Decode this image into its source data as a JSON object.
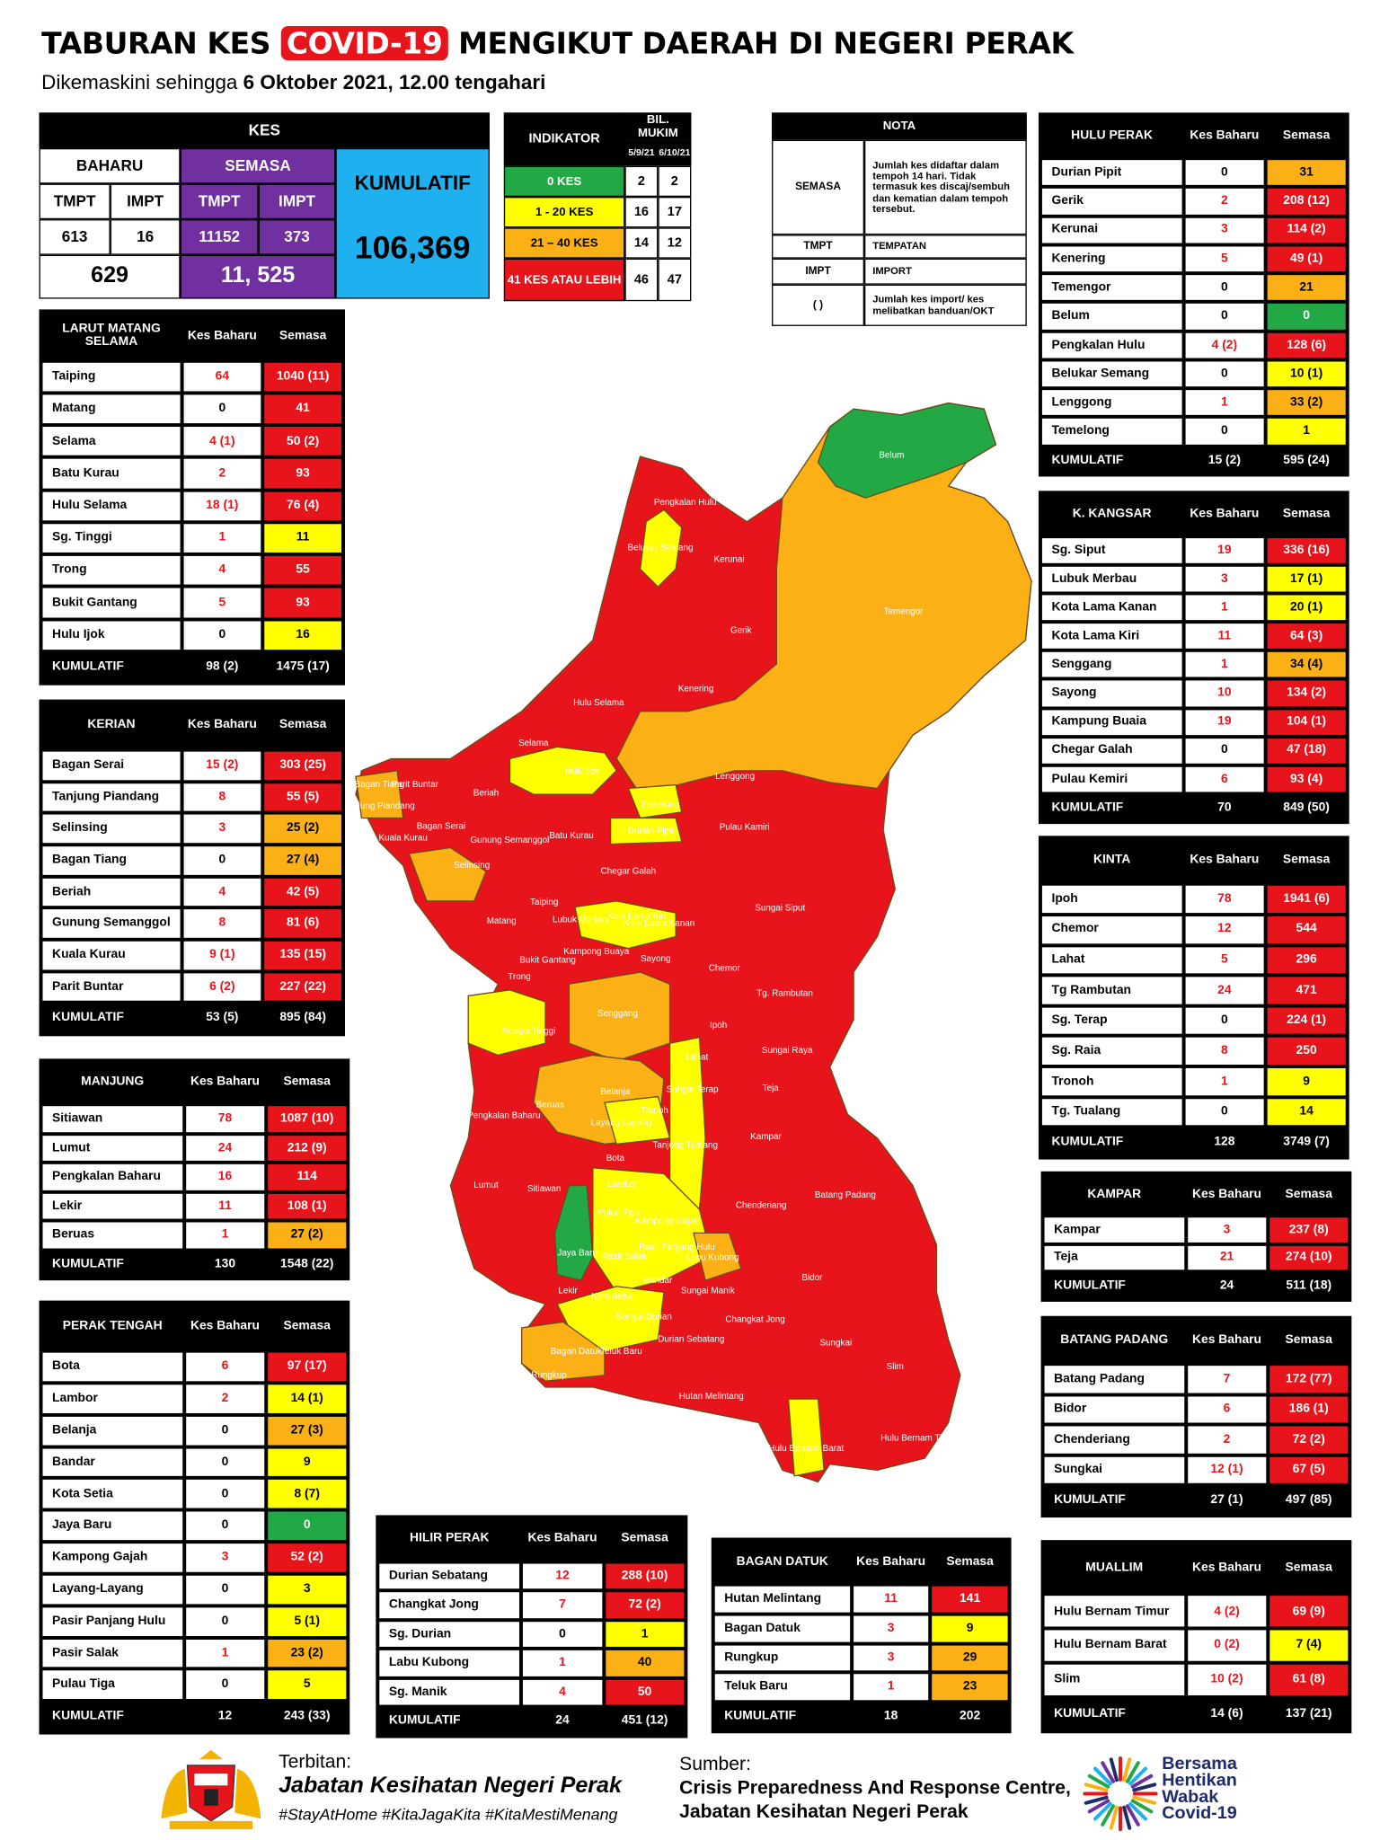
{
  "header": {
    "title_pre": "TABURAN KES",
    "title_highlight": "COVID-19",
    "title_post": "MENGIKUT DAERAH DI NEGERI PERAK",
    "subtitle_pre": "Dikemaskini sehingga",
    "subtitle_date": "6 Oktober 2021, 12.00 tengahari"
  },
  "kes": {
    "title": "KES",
    "baharu": "BAHARU",
    "semasa": "SEMASA",
    "kumulatif": "KUMULATIF",
    "cols": [
      "TMPT",
      "IMPT",
      "TMPT",
      "IMPT"
    ],
    "values": [
      613,
      16,
      11152,
      373
    ],
    "baharu_total": 629,
    "semasa_total": "11, 525",
    "kumulatif_total": "106,369"
  },
  "indikator": {
    "title": "INDIKATOR",
    "bil": "BIL. MUKIM",
    "dates": [
      "5/9/21",
      "6/10/21"
    ],
    "rows": [
      {
        "label": "0 KES",
        "color": "#22a845",
        "values": [
          2,
          2
        ]
      },
      {
        "label": "1 - 20 KES",
        "color": "#ffff00",
        "values": [
          16,
          17
        ]
      },
      {
        "label": "21 – 40 KES",
        "color": "#fbb116",
        "values": [
          14,
          12
        ]
      },
      {
        "label": "41 KES ATAU LEBIH",
        "color": "#e8141b",
        "values": [
          46,
          47
        ]
      }
    ]
  },
  "nota": {
    "title": "NOTA",
    "rows": [
      [
        "SEMASA",
        "Jumlah kes didaftar dalam tempoh 14 hari. Tidak termasuk kes discaj/sembuh dan kematian dalam tempoh tersebut."
      ],
      [
        "TMPT",
        "TEMPATAN"
      ],
      [
        "IMPT",
        "IMPORT"
      ],
      [
        "( )",
        "Jumlah kes import/ kes melibatkan banduan/OKT"
      ]
    ]
  },
  "districts": [
    {
      "title": "LARUT MATANG SELAMA",
      "col_baharu": "Kes Baharu",
      "col_semasa": "Semasa",
      "rows": [
        {
          "name": "Taiping",
          "baharu": 64,
          "semasa": "1040 (11)",
          "color": "#e8141b"
        },
        {
          "name": "Matang",
          "baharu": 0,
          "semasa": 41,
          "color": "#e8141b"
        },
        {
          "name": "Selama",
          "baharu": "4 (1)",
          "semasa": "50 (2)",
          "color": "#e8141b"
        },
        {
          "name": "Batu Kurau",
          "baharu": 2,
          "semasa": 93,
          "color": "#e8141b"
        },
        {
          "name": "Hulu Selama",
          "baharu": "18 (1)",
          "semasa": "76 (4)",
          "color": "#e8141b"
        },
        {
          "name": "Sg. Tinggi",
          "baharu": 1,
          "semasa": 11,
          "color": "#ffff00"
        },
        {
          "name": "Trong",
          "baharu": 4,
          "semasa": 55,
          "color": "#e8141b"
        },
        {
          "name": "Bukit Gantang",
          "baharu": 5,
          "semasa": 93,
          "color": "#e8141b"
        },
        {
          "name": "Hulu Ijok",
          "baharu": 0,
          "semasa": 16,
          "color": "#ffff00"
        }
      ],
      "kumulatif_label": "KUMULATIF",
      "kumulatif": [
        "98 (2)",
        "1475 (17)"
      ]
    },
    {
      "title": "KERIAN",
      "col_baharu": "Kes Baharu",
      "col_semasa": "Semasa",
      "rows": [
        {
          "name": "Bagan Serai",
          "baharu": "15 (2)",
          "semasa": "303 (25)",
          "color": "#e8141b"
        },
        {
          "name": "Tanjung Piandang",
          "baharu": 8,
          "semasa": "55 (5)",
          "color": "#e8141b"
        },
        {
          "name": "Selinsing",
          "baharu": 3,
          "semasa": "25 (2)",
          "color": "#fbb116"
        },
        {
          "name": "Bagan Tiang",
          "baharu": 0,
          "semasa": "27 (4)",
          "color": "#fbb116"
        },
        {
          "name": "Beriah",
          "baharu": 4,
          "semasa": "42 (5)",
          "color": "#e8141b"
        },
        {
          "name": "Gunung Semanggol",
          "baharu": 8,
          "semasa": "81 (6)",
          "color": "#e8141b"
        },
        {
          "name": "Kuala Kurau",
          "baharu": "9 (1)",
          "semasa": "135 (15)",
          "color": "#e8141b"
        },
        {
          "name": "Parit Buntar",
          "baharu": "6 (2)",
          "semasa": "227 (22)",
          "color": "#e8141b"
        }
      ],
      "kumulatif_label": "KUMULATIF",
      "kumulatif": [
        "53 (5)",
        "895 (84)"
      ]
    },
    {
      "title": "MANJUNG",
      "col_baharu": "Kes Baharu",
      "col_semasa": "Semasa",
      "rows": [
        {
          "name": "Sitiawan",
          "baharu": 78,
          "semasa": "1087 (10)",
          "color": "#e8141b"
        },
        {
          "name": "Lumut",
          "baharu": 24,
          "semasa": "212 (9)",
          "color": "#e8141b"
        },
        {
          "name": "Pengkalan Baharu",
          "baharu": 16,
          "semasa": 114,
          "color": "#e8141b"
        },
        {
          "name": "Lekir",
          "baharu": 11,
          "semasa": "108 (1)",
          "color": "#e8141b"
        },
        {
          "name": "Beruas",
          "baharu": 1,
          "semasa": "27 (2)",
          "color": "#fbb116"
        }
      ],
      "kumulatif_label": "KUMULATIF",
      "kumulatif": [
        130,
        "1548 (22)"
      ]
    },
    {
      "title": "PERAK TENGAH",
      "col_baharu": "Kes Baharu",
      "col_semasa": "Semasa",
      "rows": [
        {
          "name": "Bota",
          "baharu": 6,
          "semasa": "97 (17)",
          "color": "#e8141b"
        },
        {
          "name": "Lambor",
          "baharu": 2,
          "semasa": "14 (1)",
          "color": "#ffff00"
        },
        {
          "name": "Belanja",
          "baharu": 0,
          "semasa": "27 (3)",
          "color": "#fbb116"
        },
        {
          "name": "Bandar",
          "baharu": 0,
          "semasa": 9,
          "color": "#ffff00"
        },
        {
          "name": "Kota Setia",
          "baharu": 0,
          "semasa": "8 (7)",
          "color": "#ffff00"
        },
        {
          "name": "Jaya Baru",
          "baharu": 0,
          "semasa": 0,
          "color": "#22a845"
        },
        {
          "name": "Kampong Gajah",
          "baharu": 3,
          "semasa": "52 (2)",
          "color": "#e8141b"
        },
        {
          "name": "Layang-Layang",
          "baharu": 0,
          "semasa": 3,
          "color": "#ffff00"
        },
        {
          "name": "Pasir Panjang Hulu",
          "baharu": 0,
          "semasa": "5 (1)",
          "color": "#ffff00"
        },
        {
          "name": "Pasir Salak",
          "baharu": 1,
          "semasa": "23 (2)",
          "color": "#fbb116"
        },
        {
          "name": "Pulau Tiga",
          "baharu": 0,
          "semasa": 5,
          "color": "#ffff00"
        }
      ],
      "kumulatif_label": "KUMULATIF",
      "kumulatif": [
        12,
        "243 (33)"
      ]
    },
    {
      "title": "HULU PERAK",
      "col_baharu": "Kes Baharu",
      "col_semasa": "Semasa",
      "rows": [
        {
          "name": "Durian Pipit",
          "baharu": 0,
          "semasa": 31,
          "color": "#fbb116"
        },
        {
          "name": "Gerik",
          "baharu": 2,
          "semasa": "208 (12)",
          "color": "#e8141b"
        },
        {
          "name": "Kerunai",
          "baharu": 3,
          "semasa": "114 (2)",
          "color": "#e8141b"
        },
        {
          "name": "Kenering",
          "baharu": 5,
          "semasa": "49 (1)",
          "color": "#e8141b"
        },
        {
          "name": "Temengor",
          "baharu": 0,
          "semasa": 21,
          "color": "#fbb116"
        },
        {
          "name": "Belum",
          "baharu": 0,
          "semasa": 0,
          "color": "#22a845"
        },
        {
          "name": "Pengkalan Hulu",
          "baharu": "4 (2)",
          "semasa": "128 (6)",
          "color": "#e8141b"
        },
        {
          "name": "Belukar Semang",
          "baharu": 0,
          "semasa": "10 (1)",
          "color": "#ffff00"
        },
        {
          "name": "Lenggong",
          "baharu": 1,
          "semasa": "33 (2)",
          "color": "#fbb116"
        },
        {
          "name": "Temelong",
          "baharu": 0,
          "semasa": 1,
          "color": "#ffff00"
        }
      ],
      "kumulatif_label": "KUMULATIF",
      "kumulatif": [
        "15 (2)",
        "595 (24)"
      ]
    },
    {
      "title": "K. KANGSAR",
      "col_baharu": "Kes Baharu",
      "col_semasa": "Semasa",
      "rows": [
        {
          "name": "Sg. Siput",
          "baharu": 19,
          "semasa": "336 (16)",
          "color": "#e8141b"
        },
        {
          "name": "Lubuk Merbau",
          "baharu": 3,
          "semasa": "17 (1)",
          "color": "#ffff00"
        },
        {
          "name": "Kota Lama Kanan",
          "baharu": 1,
          "semasa": "20 (1)",
          "color": "#ffff00"
        },
        {
          "name": "Kota Lama Kiri",
          "baharu": 11,
          "semasa": "64 (3)",
          "color": "#e8141b"
        },
        {
          "name": "Senggang",
          "baharu": 1,
          "semasa": "34 (4)",
          "color": "#fbb116"
        },
        {
          "name": "Sayong",
          "baharu": 10,
          "semasa": "134 (2)",
          "color": "#e8141b"
        },
        {
          "name": "Kampung Buaia",
          "baharu": 19,
          "semasa": "104 (1)",
          "color": "#e8141b"
        },
        {
          "name": "Chegar Galah",
          "baharu": 0,
          "semasa": "47 (18)",
          "color": "#e8141b"
        },
        {
          "name": "Pulau Kemiri",
          "baharu": 6,
          "semasa": "93 (4)",
          "color": "#e8141b"
        }
      ],
      "kumulatif_label": "KUMULATIF",
      "kumulatif": [
        70,
        "849 (50)"
      ]
    },
    {
      "title": "KINTA",
      "col_baharu": "Kes Baharu",
      "col_semasa": "Semasa",
      "rows": [
        {
          "name": "Ipoh",
          "baharu": 78,
          "semasa": "1941 (6)",
          "color": "#e8141b"
        },
        {
          "name": "Chemor",
          "baharu": 12,
          "semasa": 544,
          "color": "#e8141b"
        },
        {
          "name": "Lahat",
          "baharu": 5,
          "semasa": 296,
          "color": "#e8141b"
        },
        {
          "name": "Tg Rambutan",
          "baharu": 24,
          "semasa": 471,
          "color": "#e8141b"
        },
        {
          "name": "Sg. Terap",
          "baharu": 0,
          "semasa": "224 (1)",
          "color": "#e8141b"
        },
        {
          "name": "Sg. Raia",
          "baharu": 8,
          "semasa": 250,
          "color": "#e8141b"
        },
        {
          "name": "Tronoh",
          "baharu": 1,
          "semasa": 9,
          "color": "#ffff00"
        },
        {
          "name": "Tg. Tualang",
          "baharu": 0,
          "semasa": 14,
          "color": "#ffff00"
        }
      ],
      "kumulatif_label": "KUMULATIF",
      "kumulatif": [
        128,
        "3749 (7)"
      ]
    },
    {
      "title": "KAMPAR",
      "col_baharu": "Kes Baharu",
      "col_semasa": "Semasa",
      "rows": [
        {
          "name": "Kampar",
          "baharu": 3,
          "semasa": "237 (8)",
          "color": "#e8141b"
        },
        {
          "name": "Teja",
          "baharu": 21,
          "semasa": "274 (10)",
          "color": "#e8141b"
        }
      ],
      "kumulatif_label": "KUMULATIF",
      "kumulatif": [
        24,
        "511 (18)"
      ]
    },
    {
      "title": "BATANG PADANG",
      "col_baharu": "Kes Baharu",
      "col_semasa": "Semasa",
      "rows": [
        {
          "name": "Batang Padang",
          "baharu": 7,
          "semasa": "172 (77)",
          "color": "#e8141b"
        },
        {
          "name": "Bidor",
          "baharu": 6,
          "semasa": "186 (1)",
          "color": "#e8141b"
        },
        {
          "name": "Chenderiang",
          "baharu": 2,
          "semasa": "72 (2)",
          "color": "#e8141b"
        },
        {
          "name": "Sungkai",
          "baharu": "12 (1)",
          "semasa": "67 (5)",
          "color": "#e8141b"
        }
      ],
      "kumulatif_label": "KUMULATIF",
      "kumulatif": [
        "27 (1)",
        "497 (85)"
      ]
    },
    {
      "title": "MUALLIM",
      "col_baharu": "Kes Baharu",
      "col_semasa": "Semasa",
      "rows": [
        {
          "name": "Hulu Bernam Timur",
          "baharu": "4 (2)",
          "semasa": "69 (9)",
          "color": "#e8141b"
        },
        {
          "name": "Hulu Bernam Barat",
          "baharu": "0 (2)",
          "semasa": "7 (4)",
          "color": "#ffff00"
        },
        {
          "name": "Slim",
          "baharu": "10 (2)",
          "semasa": "61 (8)",
          "color": "#e8141b"
        }
      ],
      "kumulatif_label": "KUMULATIF",
      "kumulatif": [
        "14 (6)",
        "137 (21)"
      ]
    },
    {
      "title": "HILIR PERAK",
      "col_baharu": "Kes Baharu",
      "col_semasa": "Semasa",
      "rows": [
        {
          "name": "Durian Sebatang",
          "baharu": 12,
          "semasa": "288 (10)",
          "color": "#e8141b"
        },
        {
          "name": "Changkat Jong",
          "baharu": 7,
          "semasa": "72 (2)",
          "color": "#e8141b"
        },
        {
          "name": "Sg. Durian",
          "baharu": 0,
          "semasa": 1,
          "color": "#ffff00"
        },
        {
          "name": "Labu Kubong",
          "baharu": 1,
          "semasa": 40,
          "color": "#fbb116"
        },
        {
          "name": "Sg. Manik",
          "baharu": 4,
          "semasa": 50,
          "color": "#e8141b"
        }
      ],
      "kumulatif_label": "KUMULATIF",
      "kumulatif": [
        24,
        "451 (12)"
      ]
    },
    {
      "title": "BAGAN DATUK",
      "col_baharu": "Kes Baharu",
      "col_semasa": "Semasa",
      "rows": [
        {
          "name": "Hutan Melintang",
          "baharu": 11,
          "semasa": 141,
          "color": "#e8141b"
        },
        {
          "name": "Bagan Datuk",
          "baharu": 3,
          "semasa": 9,
          "color": "#ffff00"
        },
        {
          "name": "Rungkup",
          "baharu": 3,
          "semasa": 29,
          "color": "#fbb116"
        },
        {
          "name": "Teluk Baru",
          "baharu": 1,
          "semasa": 23,
          "color": "#fbb116"
        }
      ],
      "kumulatif_label": "KUMULATIF",
      "kumulatif": [
        18,
        202
      ]
    }
  ],
  "map": {
    "labels": [
      "Belum",
      "Pengkalan Hulu",
      "Belukar Semang",
      "Kerunai",
      "Temengor",
      "Gerik",
      "Kenering",
      "Hulu Selama",
      "Selama",
      "Hulu Ijok",
      "Lenggong",
      "Bagan Tiang",
      "Parit Buntar",
      "Tanjung Piandang",
      "Beriah",
      "Bagan Serai",
      "Kuala Kurau",
      "Gunung Semanggol",
      "Batu Kurau",
      "Temelong",
      "Durian Pipit",
      "Pulau Kamiri",
      "Selinsing",
      "Chegar Galah",
      "Taiping",
      "Lubuk Merbau",
      "Kota Lama Kiri",
      "Kota Lama Kanan",
      "Sungai Siput",
      "Matang",
      "Kampong Buaya",
      "Bukit Gantang",
      "Sayong",
      "Trong",
      "Chemor",
      "Tg. Rambutan",
      "Senggang",
      "Sungai Tinggi",
      "Ipoh",
      "Sungai Raya",
      "Lahat",
      "Pengkalan Baharu",
      "Beruas",
      "Belanja",
      "Sungai Terap",
      "Teja",
      "Layang Layang",
      "Tronoh",
      "Kampar",
      "Bota",
      "Tanjong Tualang",
      "Lumut",
      "Sitiawan",
      "Lambor",
      "Batang Padang",
      "Pulau Tiga",
      "Kampong Gajah",
      "Chenderiang",
      "Jaya Baru",
      "Pasir Salak",
      "Pasir Panjang Hulu",
      "Labu Kubong",
      "Bandar",
      "Bidor",
      "Lekir",
      "Kota Setia",
      "Sungai Manik",
      "Sungai Durian",
      "Changkat Jong",
      "Bagan Datuk",
      "Teluk Baru",
      "Durian Sebatang",
      "Sungkai",
      "Rungkup",
      "Slim",
      "Hutan Melintang",
      "Hulu Bernam Barat",
      "Hulu Bernam Timor"
    ]
  },
  "footer": {
    "terbitan": "Terbitan:",
    "publisher": "Jabatan Kesihatan Negeri Perak",
    "hashtags": "#StayAtHome #KitaJagaKita #KitaMestiMenang",
    "sumber": "Sumber:",
    "source_1": "Crisis Preparedness And Response Centre,",
    "source_2": "Jabatan Kesihatan Negeri Perak",
    "logo": [
      "Bersama",
      "Hentikan",
      "Wabak",
      "Covid-19"
    ]
  }
}
